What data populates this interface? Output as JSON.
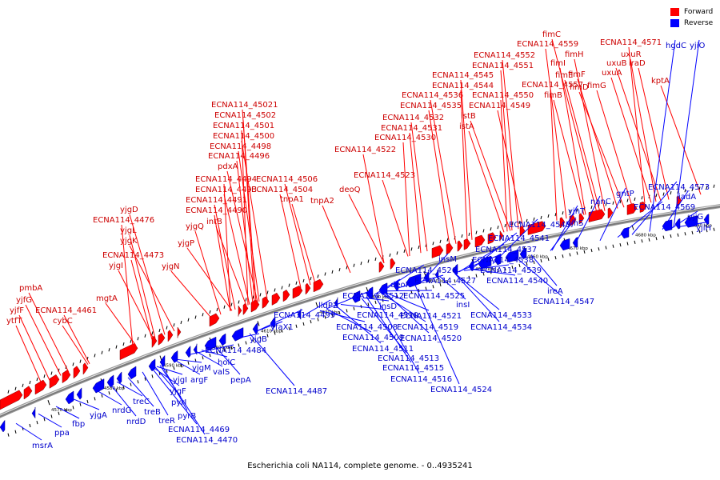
{
  "caption": "Escherichia coli NA114, complete genome. - 0..4935241",
  "colors": {
    "forward": "#ff0000",
    "reverse": "#0000ff",
    "forward_label": "#cc0000",
    "reverse_label": "#0000cc",
    "backbone": "#7a7a7a"
  },
  "legend": [
    {
      "label": "Forward",
      "color": "#ff0000"
    },
    {
      "label": "Reverse",
      "color": "#0000ff"
    }
  ],
  "ticks": [
    "4570 kbp",
    "4580 kbp",
    "4590 kbp",
    "4600 kbp",
    "4610 kbp",
    "4620 kbp",
    "4630 kbp",
    "4640 kbp",
    "4650 kbp",
    "4660 kbp",
    "4670 kbp",
    "4680 kbp",
    "4690 kbp"
  ],
  "forward_labels": [
    "ytfT",
    "yjfF",
    "yjfG",
    "pmbA",
    "ECNA114_4461",
    "cybC",
    "mgtA",
    "yjgI",
    "ECNA114_4473",
    "yjgK",
    "yjgL",
    "ECNA114_4476",
    "yjgD",
    "yjgN",
    "yjgP",
    "yjgQ",
    "intB",
    "ECNA114_4490",
    "ECNA114_4491",
    "ECNA114_4493",
    "ECNA114_4494",
    "pdxA",
    "ECNA114_4496",
    "ECNA114_4498",
    "ECNA114_4500",
    "ECNA114_4501",
    "ECNA114_4502",
    "ECNA114_45021",
    "ECNA114_4504",
    "ECNA114_4506",
    "tnpA1",
    "tnpA2",
    "deoQ",
    "ECNA114_4522",
    "ECNA114_4523",
    "ECNA114_4530",
    "ECNA114_4531",
    "ECNA114_4532",
    "ECNA114_4535",
    "ECNA114_4536",
    "ECNA114_4544",
    "ECNA114_4545",
    "istA",
    "istB",
    "ECNA114_4549",
    "ECNA114_4550",
    "ECNA114_4551",
    "ECNA114_4552",
    "ECNA114_4559",
    "fimC",
    "fimI",
    "fimH",
    "fimE",
    "fimF",
    "fimD",
    "ECNA114_4557",
    "fimB",
    "fimG",
    "uxuA",
    "uxuB",
    "uxuR",
    "iraD",
    "ECNA114_4571",
    "kptA"
  ],
  "reverse_labels": [
    "msrA",
    "ppa",
    "fbp",
    "yjgA",
    "nrdG",
    "nrdD",
    "treC",
    "treB",
    "treR",
    "pyrI",
    "pyrB",
    "ECNA114_4469",
    "ECNA114_4470",
    "yjgF",
    "yjgI",
    "argF",
    "yjgM",
    "holC",
    "valS",
    "pepA",
    "ECNA114_4484",
    "ECNA114_4487",
    "yjgB",
    "yfaX1",
    "ECNA114_4499",
    "lldP2",
    "ECNA114_4512",
    "ECNA114_4508",
    "ECNA114_4509",
    "ECNA114_4510",
    "insD",
    "ECNA114_4511",
    "ECNA114_4513",
    "ECNA114_4515",
    "ECNA114_4516",
    "ECNA114_4519",
    "ECNA114_4520",
    "ECNA114_4521",
    "deoK",
    "ECNA114_4525",
    "ECNA114_4526",
    "ECNA114_4527",
    "insM",
    "insI",
    "ECNA114_4524",
    "ECNA114_4533",
    "ECNA114_4534",
    "ECNA114_4537",
    "ECNA114_4538",
    "ECNA114_4539",
    "ECNA114_4540",
    "ECNA114_4541",
    "ECNA114_4547",
    "ECNA114_4548",
    "ireA",
    "yjhS",
    "yjhT",
    "nanC",
    "gntP",
    "ECNA114_4569",
    "ECNA114_4573",
    "iadA",
    "yjiG",
    "yjiH",
    "hgdC",
    "yjiO"
  ]
}
